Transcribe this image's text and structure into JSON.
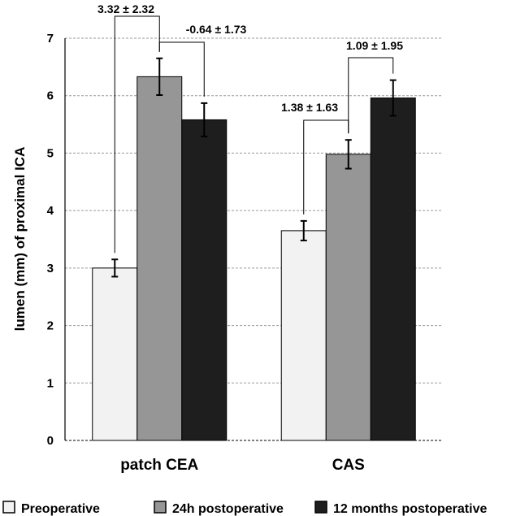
{
  "chart_data": {
    "type": "bar",
    "title": "",
    "xlabel": "",
    "ylabel": "lumen (mm) of proximal ICA",
    "ylim": [
      0,
      7
    ],
    "yticks": [
      0,
      1,
      2,
      3,
      4,
      5,
      6,
      7
    ],
    "grid": true,
    "legend_position": "bottom",
    "categories": [
      "patch CEA",
      "CAS"
    ],
    "series": [
      {
        "name": "Preoperative",
        "color": "#f2f2f2",
        "values": [
          3.0,
          3.65
        ],
        "errors": [
          0.15,
          0.17
        ]
      },
      {
        "name": "24h postoperative",
        "color": "#969696",
        "values": [
          6.33,
          4.98
        ],
        "errors": [
          0.32,
          0.25
        ]
      },
      {
        "name": "12 months postoperative",
        "color": "#1e1e1e",
        "values": [
          5.58,
          5.96
        ],
        "errors": [
          0.29,
          0.31
        ]
      }
    ],
    "annotations": [
      {
        "text": "3.32 ± 2.32",
        "category": 0,
        "from_series": 0,
        "to_series": 1
      },
      {
        "text": "-0.64 ± 1.73",
        "category": 0,
        "from_series": 1,
        "to_series": 2
      },
      {
        "text": "1.38 ± 1.63",
        "category": 1,
        "from_series": 0,
        "to_series": 1
      },
      {
        "text": "1.09 ± 1.95",
        "category": 1,
        "from_series": 1,
        "to_series": 2
      }
    ]
  }
}
